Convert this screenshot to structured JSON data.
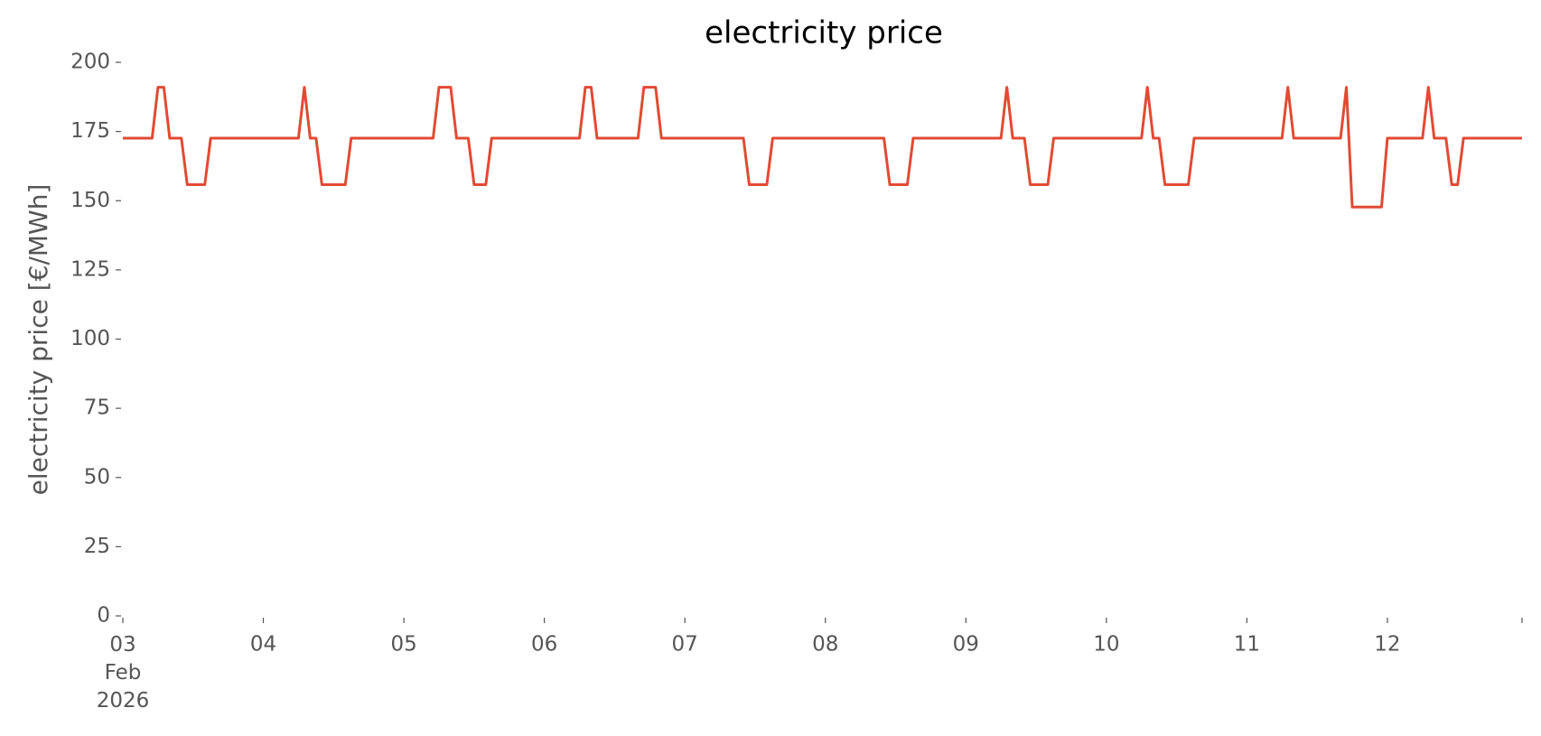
{
  "chart_data": {
    "type": "line",
    "title": "electricity price",
    "ylabel": "electricity price [€/MWh]",
    "color": "#E24A33",
    "xlim": [
      0,
      239
    ],
    "ylim": [
      0,
      200
    ],
    "yticks": [
      0,
      25,
      50,
      75,
      100,
      125,
      150,
      175,
      200
    ],
    "xticks": [
      {
        "value": 0,
        "label": "03\nFeb\n2026"
      },
      {
        "value": 24,
        "label": "04"
      },
      {
        "value": 48,
        "label": "05"
      },
      {
        "value": 72,
        "label": "06"
      },
      {
        "value": 96,
        "label": "07"
      },
      {
        "value": 120,
        "label": "08"
      },
      {
        "value": 144,
        "label": "09"
      },
      {
        "value": 168,
        "label": "10"
      },
      {
        "value": 192,
        "label": "11"
      },
      {
        "value": 216,
        "label": "12"
      },
      {
        "value": 239,
        "label": null
      }
    ],
    "x": [
      0,
      1,
      2,
      3,
      4,
      5,
      6,
      7,
      8,
      9,
      10,
      11,
      12,
      13,
      14,
      15,
      16,
      17,
      18,
      19,
      20,
      21,
      22,
      23,
      24,
      25,
      26,
      27,
      28,
      29,
      30,
      31,
      32,
      33,
      34,
      35,
      36,
      37,
      38,
      39,
      40,
      41,
      42,
      43,
      44,
      45,
      46,
      47,
      48,
      49,
      50,
      51,
      52,
      53,
      54,
      55,
      56,
      57,
      58,
      59,
      60,
      61,
      62,
      63,
      64,
      65,
      66,
      67,
      68,
      69,
      70,
      71,
      72,
      73,
      74,
      75,
      76,
      77,
      78,
      79,
      80,
      81,
      82,
      83,
      84,
      85,
      86,
      87,
      88,
      89,
      90,
      91,
      92,
      93,
      94,
      95,
      96,
      97,
      98,
      99,
      100,
      101,
      102,
      103,
      104,
      105,
      106,
      107,
      108,
      109,
      110,
      111,
      112,
      113,
      114,
      115,
      116,
      117,
      118,
      119,
      120,
      121,
      122,
      123,
      124,
      125,
      126,
      127,
      128,
      129,
      130,
      131,
      132,
      133,
      134,
      135,
      136,
      137,
      138,
      139,
      140,
      141,
      142,
      143,
      144,
      145,
      146,
      147,
      148,
      149,
      150,
      151,
      152,
      153,
      154,
      155,
      156,
      157,
      158,
      159,
      160,
      161,
      162,
      163,
      164,
      165,
      166,
      167,
      168,
      169,
      170,
      171,
      172,
      173,
      174,
      175,
      176,
      177,
      178,
      179,
      180,
      181,
      182,
      183,
      184,
      185,
      186,
      187,
      188,
      189,
      190,
      191,
      192,
      193,
      194,
      195,
      196,
      197,
      198,
      199,
      200,
      201,
      202,
      203,
      204,
      205,
      206,
      207,
      208,
      209,
      210,
      211,
      212,
      213,
      214,
      215,
      216,
      217,
      218,
      219,
      220,
      221,
      222,
      223,
      224,
      225,
      226,
      227,
      228,
      229,
      230,
      231,
      232,
      233,
      234,
      235,
      236,
      237,
      238,
      239
    ],
    "values": [
      172.6,
      172.6,
      172.6,
      172.6,
      172.6,
      172.6,
      191,
      191,
      172.6,
      172.6,
      172.6,
      155.8,
      155.8,
      155.8,
      155.8,
      172.6,
      172.6,
      172.6,
      172.6,
      172.6,
      172.6,
      172.6,
      172.6,
      172.6,
      172.6,
      172.6,
      172.6,
      172.6,
      172.6,
      172.6,
      172.6,
      191,
      172.6,
      172.6,
      155.8,
      155.8,
      155.8,
      155.8,
      155.8,
      172.6,
      172.6,
      172.6,
      172.6,
      172.6,
      172.6,
      172.6,
      172.6,
      172.6,
      172.6,
      172.6,
      172.6,
      172.6,
      172.6,
      172.6,
      191,
      191,
      191,
      172.6,
      172.6,
      172.6,
      155.8,
      155.8,
      155.8,
      172.6,
      172.6,
      172.6,
      172.6,
      172.6,
      172.6,
      172.6,
      172.6,
      172.6,
      172.6,
      172.6,
      172.6,
      172.6,
      172.6,
      172.6,
      172.6,
      191,
      191,
      172.6,
      172.6,
      172.6,
      172.6,
      172.6,
      172.6,
      172.6,
      172.6,
      191,
      191,
      191,
      172.6,
      172.6,
      172.6,
      172.6,
      172.6,
      172.6,
      172.6,
      172.6,
      172.6,
      172.6,
      172.6,
      172.6,
      172.6,
      172.6,
      172.6,
      155.8,
      155.8,
      155.8,
      155.8,
      172.6,
      172.6,
      172.6,
      172.6,
      172.6,
      172.6,
      172.6,
      172.6,
      172.6,
      172.6,
      172.6,
      172.6,
      172.6,
      172.6,
      172.6,
      172.6,
      172.6,
      172.6,
      172.6,
      172.6,
      155.8,
      155.8,
      155.8,
      155.8,
      172.6,
      172.6,
      172.6,
      172.6,
      172.6,
      172.6,
      172.6,
      172.6,
      172.6,
      172.6,
      172.6,
      172.6,
      172.6,
      172.6,
      172.6,
      172.6,
      191,
      172.6,
      172.6,
      172.6,
      155.8,
      155.8,
      155.8,
      155.8,
      172.6,
      172.6,
      172.6,
      172.6,
      172.6,
      172.6,
      172.6,
      172.6,
      172.6,
      172.6,
      172.6,
      172.6,
      172.6,
      172.6,
      172.6,
      172.6,
      191,
      172.6,
      172.6,
      155.8,
      155.8,
      155.8,
      155.8,
      155.8,
      172.6,
      172.6,
      172.6,
      172.6,
      172.6,
      172.6,
      172.6,
      172.6,
      172.6,
      172.6,
      172.6,
      172.6,
      172.6,
      172.6,
      172.6,
      172.6,
      191,
      172.6,
      172.6,
      172.6,
      172.6,
      172.6,
      172.6,
      172.6,
      172.6,
      172.6,
      191,
      147.7,
      147.7,
      147.7,
      147.7,
      147.7,
      147.7,
      172.6,
      172.6,
      172.6,
      172.6,
      172.6,
      172.6,
      172.6,
      191,
      172.6,
      172.6,
      172.6,
      155.8,
      155.8,
      172.6,
      172.6,
      172.6,
      172.6,
      172.6,
      172.6,
      172.6,
      172.6,
      172.6,
      172.6,
      172.6
    ]
  }
}
